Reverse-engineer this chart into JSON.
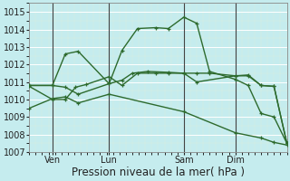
{
  "xlabel": "Pression niveau de la mer( hPa )",
  "background_color": "#c5ecee",
  "line_color": "#2d6a2d",
  "ylim": [
    1007,
    1015.5
  ],
  "yticks": [
    1007,
    1008,
    1009,
    1010,
    1011,
    1012,
    1013,
    1014,
    1015
  ],
  "xlim": [
    0,
    1
  ],
  "day_positions": [
    0.09,
    0.31,
    0.6,
    0.8
  ],
  "day_labels": [
    "Ven",
    "Lun",
    "Sam",
    "Dim"
  ],
  "vline_positions": [
    0.09,
    0.31,
    0.6,
    0.8
  ],
  "lines": [
    {
      "x": [
        0.0,
        0.09,
        0.14,
        0.19,
        0.31,
        0.36,
        0.42,
        0.49,
        0.54,
        0.6,
        0.65,
        0.7,
        0.8,
        0.85,
        0.9,
        0.95,
        1.0
      ],
      "y": [
        1010.8,
        1010.8,
        1012.6,
        1012.75,
        1010.9,
        1012.8,
        1014.05,
        1014.1,
        1014.05,
        1014.7,
        1014.35,
        1011.6,
        1011.15,
        1010.8,
        1009.2,
        1009.0,
        1007.5
      ],
      "marker": "+"
    },
    {
      "x": [
        0.0,
        0.09,
        0.14,
        0.19,
        0.31,
        0.36,
        0.4,
        0.46,
        0.54,
        0.6,
        0.65,
        0.7,
        0.8,
        0.85,
        0.9,
        0.95,
        1.0
      ],
      "y": [
        1010.8,
        1010.8,
        1010.7,
        1010.3,
        1010.9,
        1011.1,
        1011.5,
        1011.6,
        1011.55,
        1011.5,
        1011.5,
        1011.5,
        1011.35,
        1011.4,
        1010.8,
        1010.75,
        1007.5
      ],
      "marker": "+"
    },
    {
      "x": [
        0.0,
        0.09,
        0.14,
        0.18,
        0.22,
        0.31,
        0.36,
        0.42,
        0.49,
        0.54,
        0.6,
        0.65,
        0.8,
        0.85,
        0.9,
        0.95,
        1.0
      ],
      "y": [
        1010.75,
        1010.0,
        1010.0,
        1010.7,
        1010.85,
        1011.3,
        1010.8,
        1011.5,
        1011.5,
        1011.5,
        1011.5,
        1011.0,
        1011.35,
        1011.35,
        1010.8,
        1010.75,
        1007.5
      ],
      "marker": "+"
    },
    {
      "x": [
        0.0,
        0.09,
        0.14,
        0.19,
        0.31,
        0.6,
        0.8,
        0.9,
        0.95,
        1.0
      ],
      "y": [
        1009.5,
        1010.05,
        1010.15,
        1009.8,
        1010.3,
        1009.3,
        1008.1,
        1007.8,
        1007.55,
        1007.4
      ],
      "marker": "+"
    }
  ],
  "fontsize_tick": 7,
  "fontsize_xlabel": 8.5,
  "marker_size": 3.5,
  "linewidth": 1.0
}
